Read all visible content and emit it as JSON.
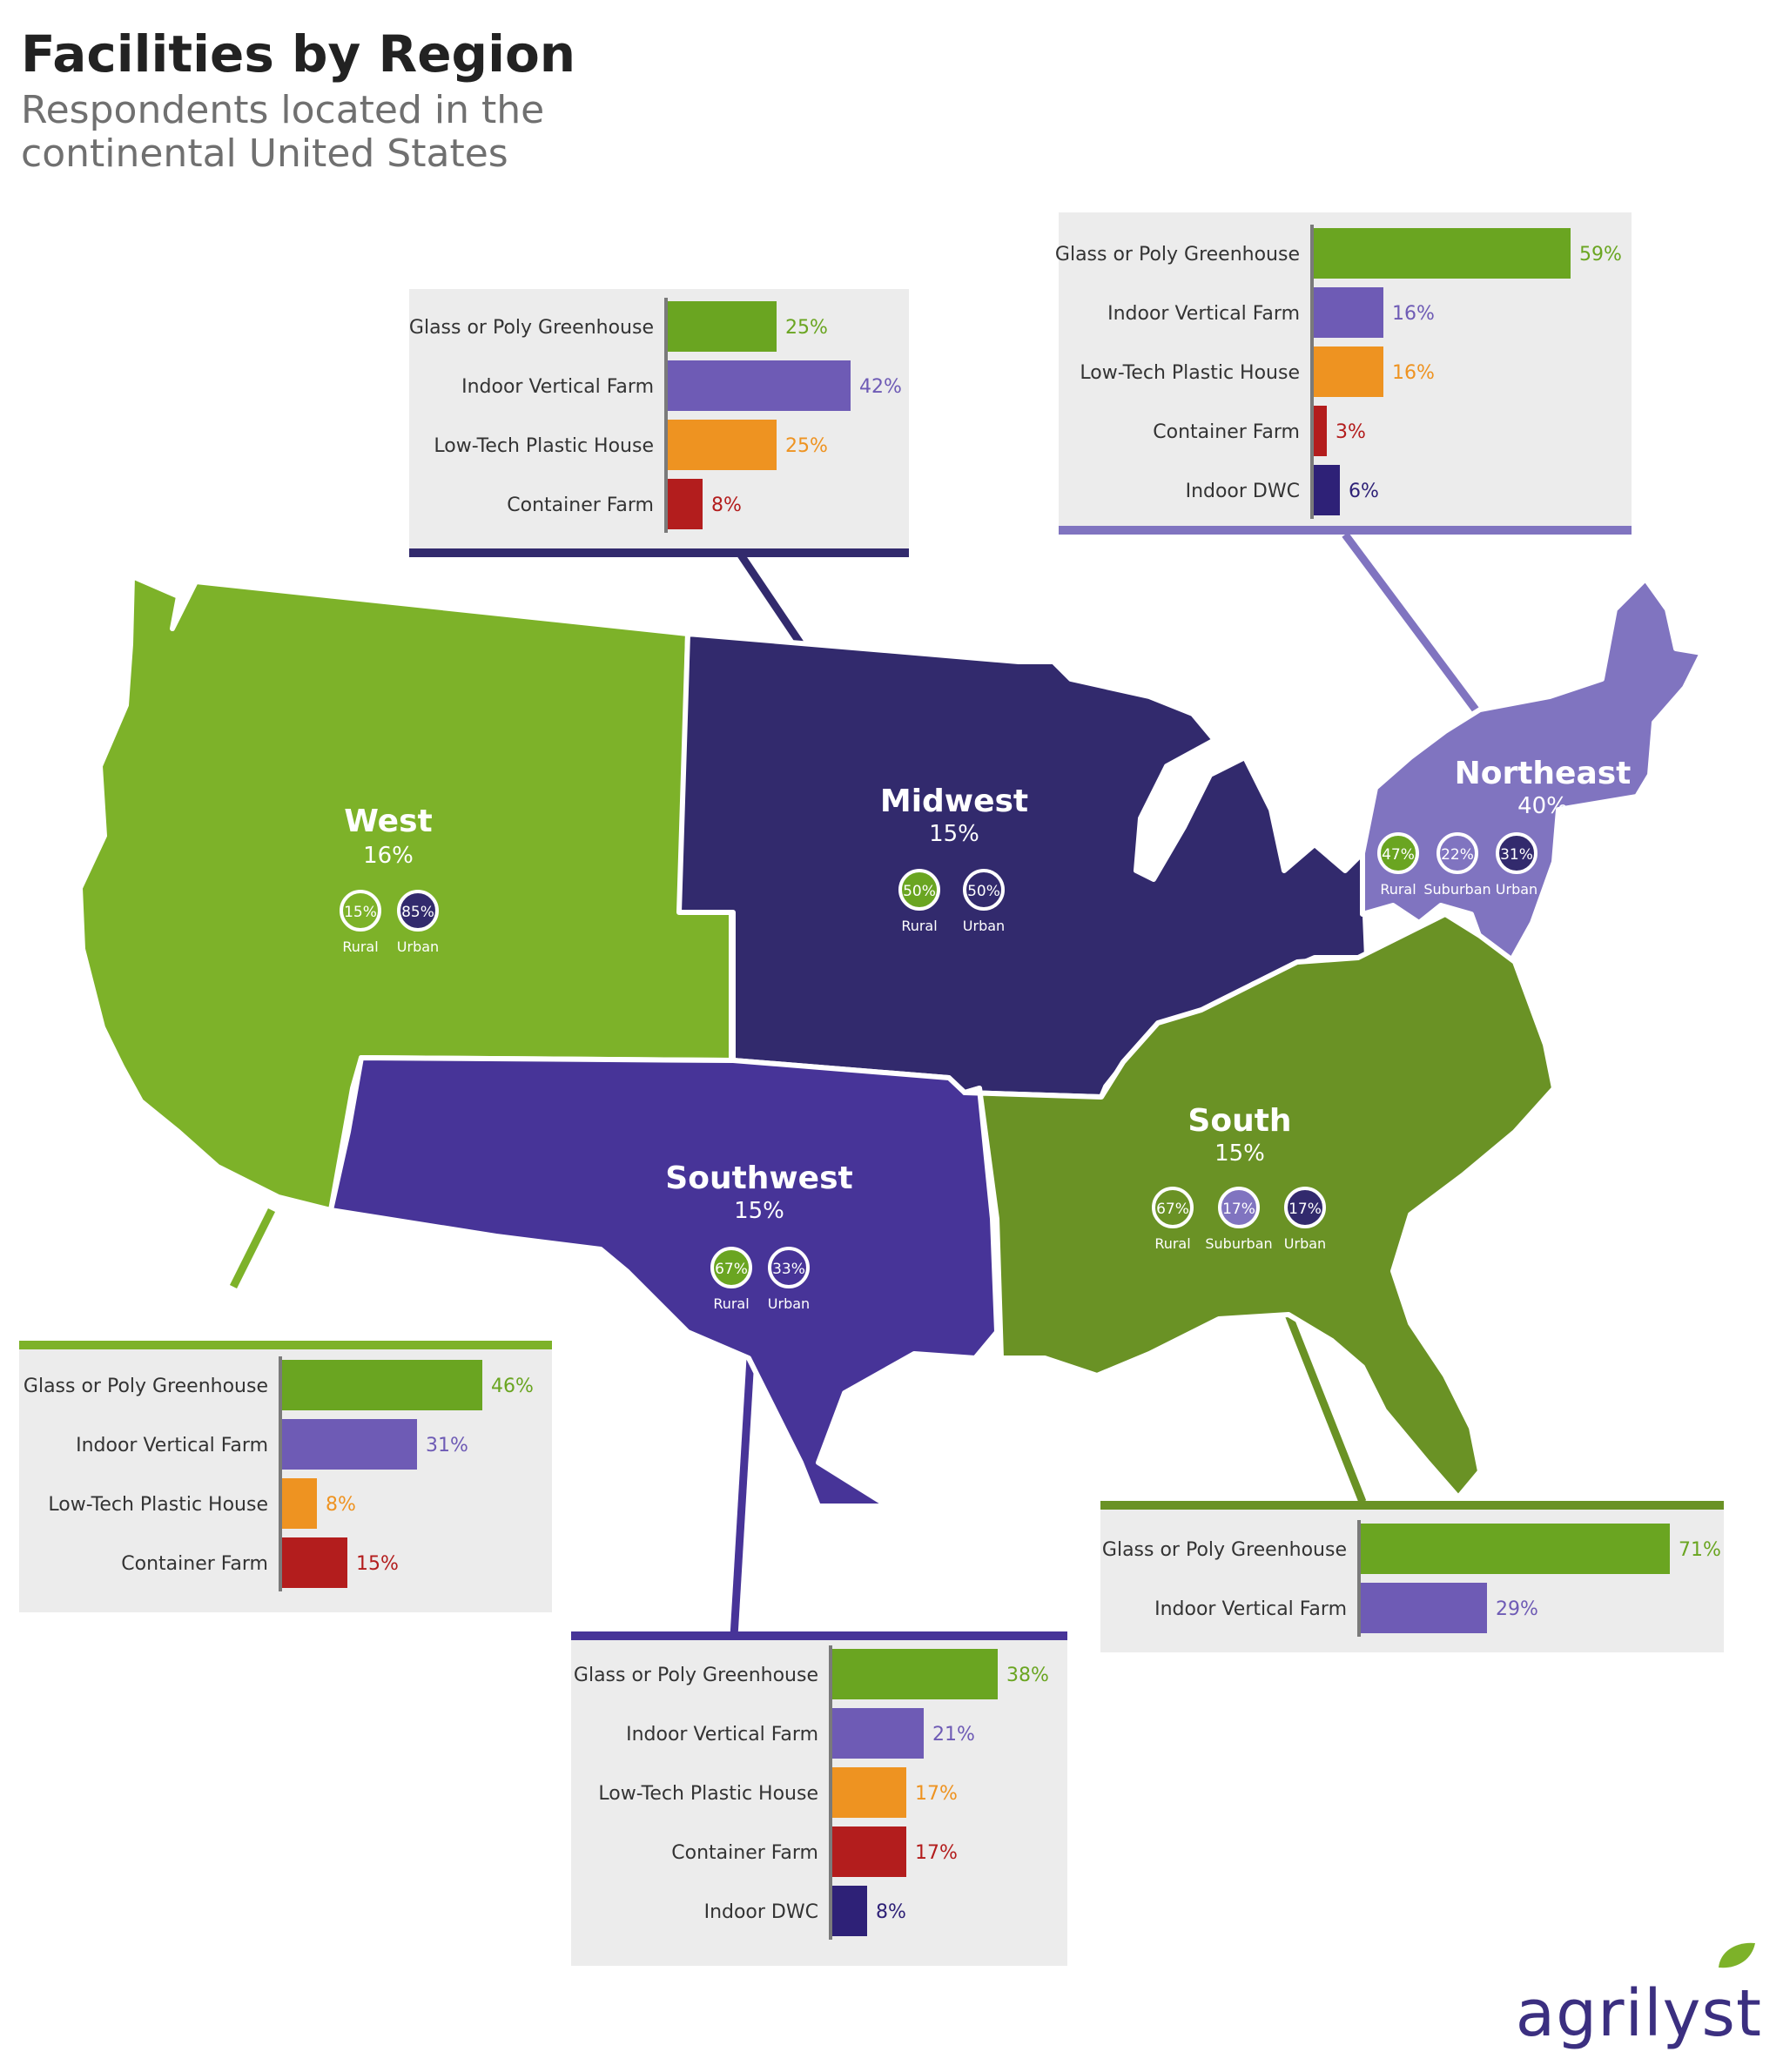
{
  "header": {
    "title": "Facilities by Region",
    "subtitle": "Respondents located in the continental United States"
  },
  "logo": {
    "text": "agrilyst"
  },
  "colors": {
    "greenhouse": "#6aa521",
    "vertical": "#6e5bb5",
    "lowtech": "#ee9321",
    "container": "#b31d1d",
    "dwc": "#2e2177",
    "west": "#7db229",
    "midwest": "#322a6d",
    "northeast": "#8074c0",
    "southwest": "#473498",
    "south": "#6a9225",
    "panel": "#ececec"
  },
  "regions": {
    "west": {
      "name": "West",
      "pct": "16%",
      "badges": [
        {
          "label": "Rural",
          "value": "15%",
          "color": "#7db229"
        },
        {
          "label": "Urban",
          "value": "85%",
          "color": "#322a6d"
        }
      ]
    },
    "midwest": {
      "name": "Midwest",
      "pct": "15%",
      "badges": [
        {
          "label": "Rural",
          "value": "50%",
          "color": "#6aa521"
        },
        {
          "label": "Urban",
          "value": "50%",
          "color": "#322a6d"
        }
      ]
    },
    "northeast": {
      "name": "Northeast",
      "pct": "40%",
      "badges": [
        {
          "label": "Rural",
          "value": "47%",
          "color": "#6aa521"
        },
        {
          "label": "Suburban",
          "value": "22%",
          "color": "#8074c0"
        },
        {
          "label": "Urban",
          "value": "31%",
          "color": "#322a6d"
        }
      ]
    },
    "southwest": {
      "name": "Southwest",
      "pct": "15%",
      "badges": [
        {
          "label": "Rural",
          "value": "67%",
          "color": "#6aa521"
        },
        {
          "label": "Urban",
          "value": "33%",
          "color": "#473498"
        }
      ]
    },
    "south": {
      "name": "South",
      "pct": "15%",
      "badges": [
        {
          "label": "Rural",
          "value": "67%",
          "color": "#6a9225"
        },
        {
          "label": "Suburban",
          "value": "17%",
          "color": "#8074c0"
        },
        {
          "label": "Urban",
          "value": "17%",
          "color": "#322a6d"
        }
      ]
    }
  },
  "chart_data": [
    {
      "type": "bar",
      "region": "Midwest",
      "categories": [
        "Glass or Poly Greenhouse",
        "Indoor Vertical Farm",
        "Low-Tech Plastic House",
        "Container Farm"
      ],
      "values": [
        25,
        42,
        25,
        8
      ],
      "labels": [
        "25%",
        "42%",
        "25%",
        "8%"
      ]
    },
    {
      "type": "bar",
      "region": "Northeast",
      "categories": [
        "Glass or Poly Greenhouse",
        "Indoor Vertical Farm",
        "Low-Tech Plastic House",
        "Container Farm",
        "Indoor DWC"
      ],
      "values": [
        59,
        16,
        16,
        3,
        6
      ],
      "labels": [
        "59%",
        "16%",
        "16%",
        "3%",
        "6%"
      ]
    },
    {
      "type": "bar",
      "region": "West",
      "categories": [
        "Glass or Poly Greenhouse",
        "Indoor Vertical Farm",
        "Low-Tech Plastic House",
        "Container Farm"
      ],
      "values": [
        46,
        31,
        8,
        15
      ],
      "labels": [
        "46%",
        "31%",
        "8%",
        "15%"
      ]
    },
    {
      "type": "bar",
      "region": "Southwest",
      "categories": [
        "Glass or Poly Greenhouse",
        "Indoor Vertical Farm",
        "Low-Tech Plastic House",
        "Container Farm",
        "Indoor DWC"
      ],
      "values": [
        38,
        21,
        17,
        17,
        8
      ],
      "labels": [
        "38%",
        "21%",
        "17%",
        "17%",
        "8%"
      ]
    },
    {
      "type": "bar",
      "region": "South",
      "categories": [
        "Glass or Poly Greenhouse",
        "Indoor Vertical Farm"
      ],
      "values": [
        71,
        29
      ],
      "labels": [
        "71%",
        "29%"
      ]
    }
  ]
}
